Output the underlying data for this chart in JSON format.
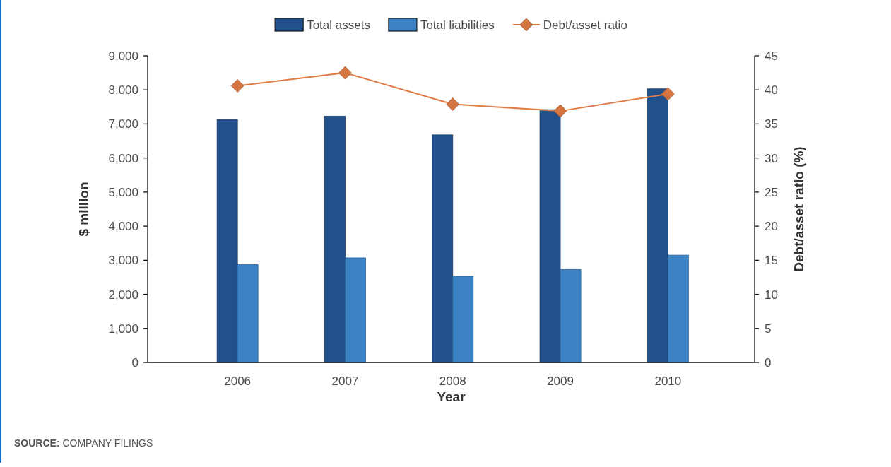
{
  "chart_data": {
    "type": "bar",
    "xlabel": "Year",
    "ylabel": "$ million",
    "y2label": "Debt/asset ratio (%)",
    "categories": [
      "2006",
      "2007",
      "2008",
      "2009",
      "2010"
    ],
    "series": [
      {
        "name": "Total assets",
        "color": "#21508b",
        "values": [
          7130,
          7230,
          6680,
          7420,
          8030
        ]
      },
      {
        "name": "Total liabilities",
        "color": "#3b83c5",
        "values": [
          2870,
          3070,
          2530,
          2730,
          3150
        ]
      },
      {
        "name": "Debt/asset ratio",
        "type": "line",
        "axis": "y2",
        "color": "#e07b45",
        "marker": "diamond",
        "values": [
          40.6,
          42.5,
          37.9,
          36.9,
          39.4
        ]
      }
    ],
    "ylim": [
      0,
      9000
    ],
    "yticks": [
      0,
      {
        "value": 1000,
        "label": "1,000"
      },
      {
        "value": 2000,
        "label": "2,000"
      },
      {
        "value": 3000,
        "label": "3,000"
      },
      {
        "value": 4000,
        "label": "4,000"
      },
      {
        "value": 5000,
        "label": "5,000"
      },
      {
        "value": 6000,
        "label": "6,000"
      },
      {
        "value": 7000,
        "label": "7,000"
      },
      {
        "value": 8000,
        "label": "8,000"
      },
      {
        "value": 9000,
        "label": "9,000"
      }
    ],
    "y2lim": [
      0,
      45
    ],
    "y2ticks": [
      0,
      5,
      10,
      15,
      20,
      25,
      30,
      35,
      40,
      45
    ],
    "legend": "top",
    "annotations": [
      "SOURCE: COMPANY FILINGS"
    ]
  }
}
